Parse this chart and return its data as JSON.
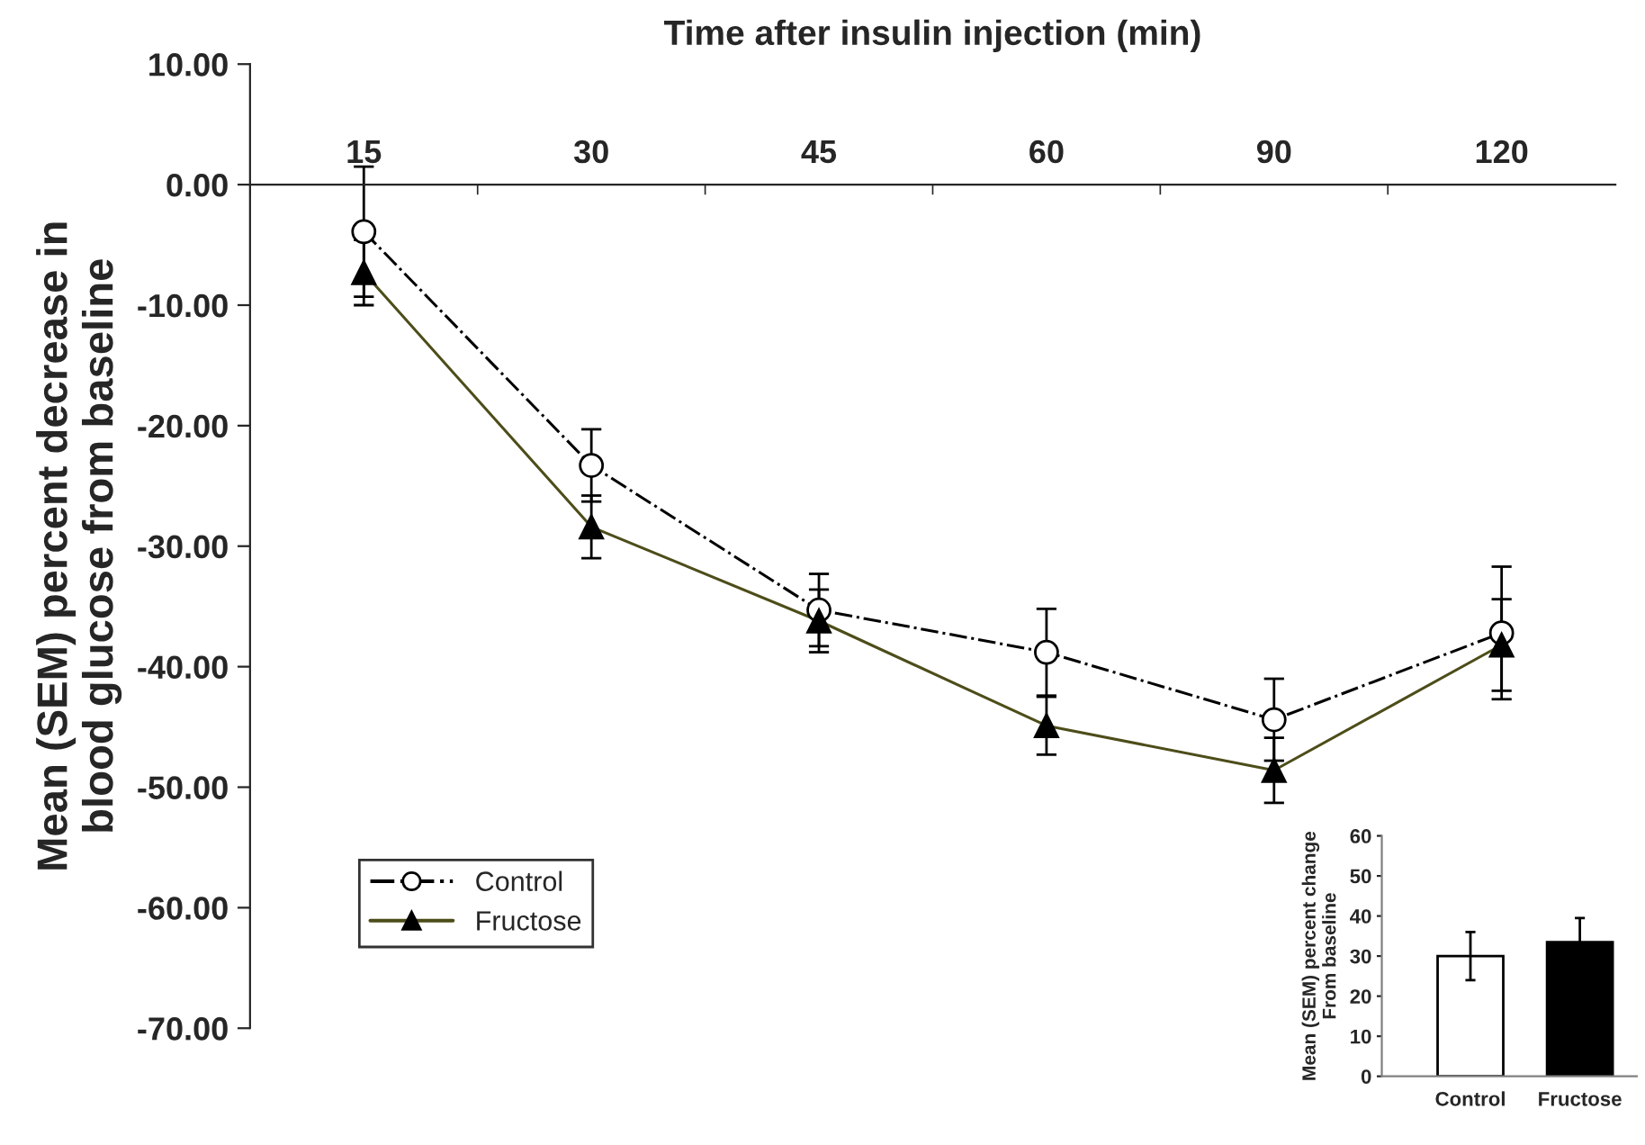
{
  "chart_data": [
    {
      "type": "line",
      "xlabel": "Time after insulin injection (min)",
      "ylabel": "Mean (SEM) percent decrease in\nblood glucose from baseline",
      "categories": [
        "15",
        "30",
        "45",
        "60",
        "90",
        "120"
      ],
      "ylim": [
        -70,
        10
      ],
      "yticks": [
        {
          "value": 10,
          "label": "10.00"
        },
        {
          "value": 0,
          "label": "0.00"
        },
        {
          "value": -10,
          "label": "-10.00"
        },
        {
          "value": -20,
          "label": "-20.00"
        },
        {
          "value": -30,
          "label": "-30.00"
        },
        {
          "value": -40,
          "label": "-40.00"
        },
        {
          "value": -50,
          "label": "-50.00"
        },
        {
          "value": -60,
          "label": "-60.00"
        },
        {
          "value": -70,
          "label": "-70.00"
        }
      ],
      "legend": "bottom left",
      "grid": false,
      "series": [
        {
          "name": "Control",
          "color": "#000000",
          "marker": "circle",
          "line_style": "dashdot",
          "values": [
            -3.9,
            -23.3,
            -35.3,
            -38.8,
            -44.4,
            -37.2
          ],
          "errors": [
            5.4,
            3.0,
            3.0,
            3.6,
            3.4,
            5.5
          ]
        },
        {
          "name": "Fructose",
          "color": "#4d4d1a",
          "marker": "triangle",
          "line_style": "solid",
          "values": [
            -7.3,
            -28.4,
            -36.2,
            -44.9,
            -48.6,
            -38.2
          ],
          "errors": [
            2.7,
            2.6,
            2.6,
            2.4,
            2.7,
            3.8
          ]
        }
      ]
    },
    {
      "type": "bar",
      "ylabel": "Mean (SEM) percent change\nFrom baseline",
      "categories": [
        "Control",
        "Fructose"
      ],
      "ylim": [
        0,
        60
      ],
      "yticks": [
        0,
        10,
        20,
        30,
        40,
        50,
        60
      ],
      "values": [
        30,
        33.5
      ],
      "errors": [
        6,
        6
      ],
      "colors": [
        "#ffffff",
        "#000000"
      ]
    }
  ]
}
